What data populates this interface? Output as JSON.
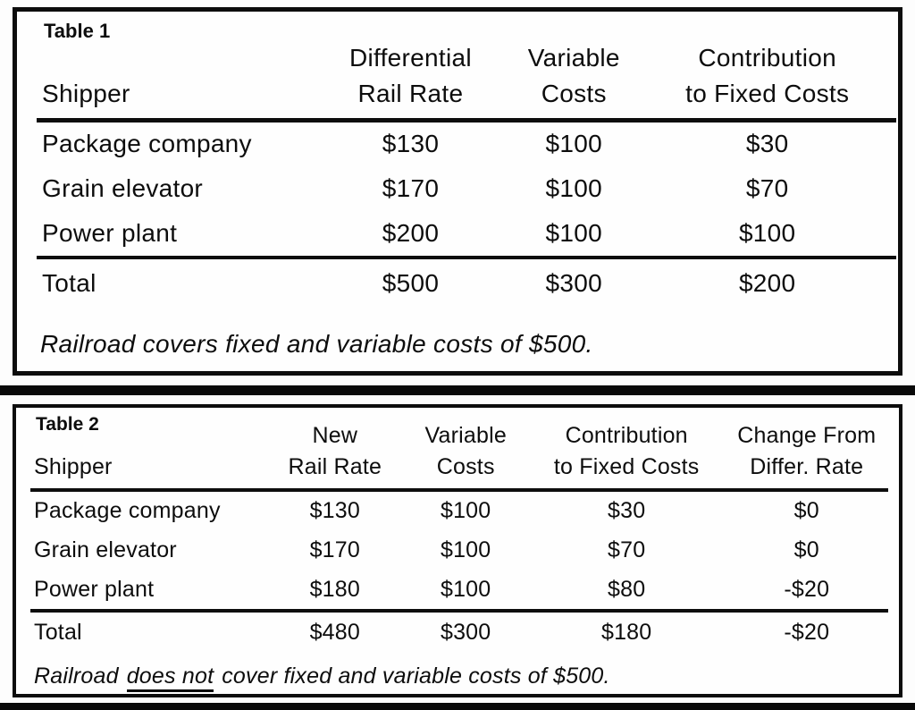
{
  "colors": {
    "ink": "#0d0d0d",
    "background": "#fdfdfd"
  },
  "table1": {
    "title": "Table 1",
    "columns": [
      {
        "line1": "",
        "line2": "Shipper"
      },
      {
        "line1": "Differential",
        "line2": "Rail Rate"
      },
      {
        "line1": "Variable",
        "line2": "Costs"
      },
      {
        "line1": "Contribution",
        "line2": "to Fixed Costs"
      }
    ],
    "rows": [
      {
        "shipper": "Package company",
        "rail_rate": "$130",
        "variable_costs": "$100",
        "contribution": "$30"
      },
      {
        "shipper": "Grain elevator",
        "rail_rate": "$170",
        "variable_costs": "$100",
        "contribution": "$70"
      },
      {
        "shipper": "Power plant",
        "rail_rate": "$200",
        "variable_costs": "$100",
        "contribution": "$100"
      }
    ],
    "total": {
      "shipper": "Total",
      "rail_rate": "$500",
      "variable_costs": "$300",
      "contribution": "$200"
    },
    "note": "Railroad covers fixed and variable costs of $500."
  },
  "table2": {
    "title": "Table 2",
    "columns": [
      {
        "line1": "",
        "line2": "Shipper"
      },
      {
        "line1": "New",
        "line2": "Rail Rate"
      },
      {
        "line1": "Variable",
        "line2": "Costs"
      },
      {
        "line1": "Contribution",
        "line2": "to Fixed Costs"
      },
      {
        "line1": "Change From",
        "line2": "Differ. Rate"
      }
    ],
    "rows": [
      {
        "shipper": "Package company",
        "rail_rate": "$130",
        "variable_costs": "$100",
        "contribution": "$30",
        "change": "$0"
      },
      {
        "shipper": "Grain elevator",
        "rail_rate": "$170",
        "variable_costs": "$100",
        "contribution": "$70",
        "change": "$0"
      },
      {
        "shipper": "Power plant",
        "rail_rate": "$180",
        "variable_costs": "$100",
        "contribution": "$80",
        "change": "-$20"
      }
    ],
    "total": {
      "shipper": "Total",
      "rail_rate": "$480",
      "variable_costs": "$300",
      "contribution": "$180",
      "change": "-$20"
    },
    "note_prefix": "Railroad",
    "note_underlined": "does not",
    "note_suffix": "cover fixed and variable costs of $500."
  }
}
